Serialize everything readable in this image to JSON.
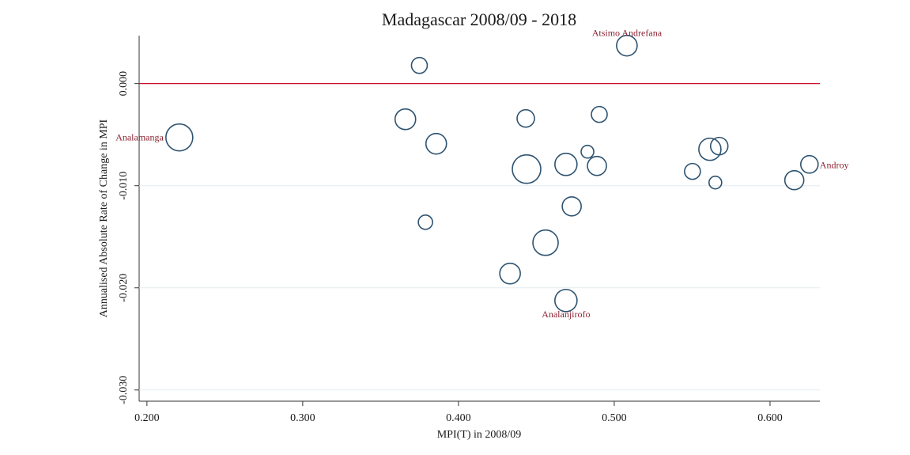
{
  "chart_data": {
    "type": "scatter",
    "title": "Madagascar 2008/09 - 2018",
    "x_label": "MPI(T) in 2008/09",
    "y_label": "Annualised Absolute Rate of Change in MPI",
    "x": [
      0.2208,
      0.3749,
      0.3659,
      0.3857,
      0.3788,
      0.4432,
      0.4437,
      0.4331,
      0.4559,
      0.469,
      0.469,
      0.4727,
      0.4828,
      0.4889,
      0.4904,
      0.5081,
      0.5502,
      0.5649,
      0.5614,
      0.5674,
      0.6156,
      0.6253
    ],
    "values": [
      -0.00527,
      0.00178,
      -0.00349,
      -0.00589,
      -0.01357,
      -0.00341,
      -0.00837,
      -0.0186,
      -0.01558,
      -0.00791,
      -0.02124,
      -0.01202,
      -0.00667,
      -0.00806,
      -0.00302,
      0.00372,
      -0.0086,
      -0.00969,
      -0.00643,
      -0.00612,
      -0.00946,
      -0.00791
    ],
    "sizes": [
      17,
      10,
      13,
      13,
      9,
      11,
      18,
      13,
      16,
      14,
      14,
      12,
      8,
      12,
      10,
      13,
      10,
      8,
      14,
      11,
      12,
      11
    ],
    "point_labels": [
      "Analamanga",
      null,
      null,
      null,
      null,
      null,
      null,
      null,
      null,
      null,
      "Analanjirofo",
      null,
      null,
      null,
      null,
      "Atsimo Andrefana",
      null,
      null,
      null,
      null,
      null,
      "Androy"
    ],
    "color": "#2e5370",
    "label_color": "#8b2332",
    "hline": 0,
    "hline_color": "#c8102e",
    "grid": true,
    "xlim": [
      0.195,
      0.632
    ],
    "ylim": [
      -0.0311,
      0.0047
    ],
    "xticks": [
      {
        "value": 0.2,
        "label": "0.200"
      },
      {
        "value": 0.3,
        "label": "0.300"
      },
      {
        "value": 0.4,
        "label": "0.400"
      },
      {
        "value": 0.5,
        "label": "0.500"
      },
      {
        "value": 0.6,
        "label": "0.600"
      }
    ],
    "yticks": [
      {
        "value": 0,
        "label": "0.000"
      },
      {
        "value": -0.01,
        "label": "-0.010"
      },
      {
        "value": -0.02,
        "label": "-0.020"
      },
      {
        "value": -0.03,
        "label": "-0.030"
      }
    ]
  }
}
